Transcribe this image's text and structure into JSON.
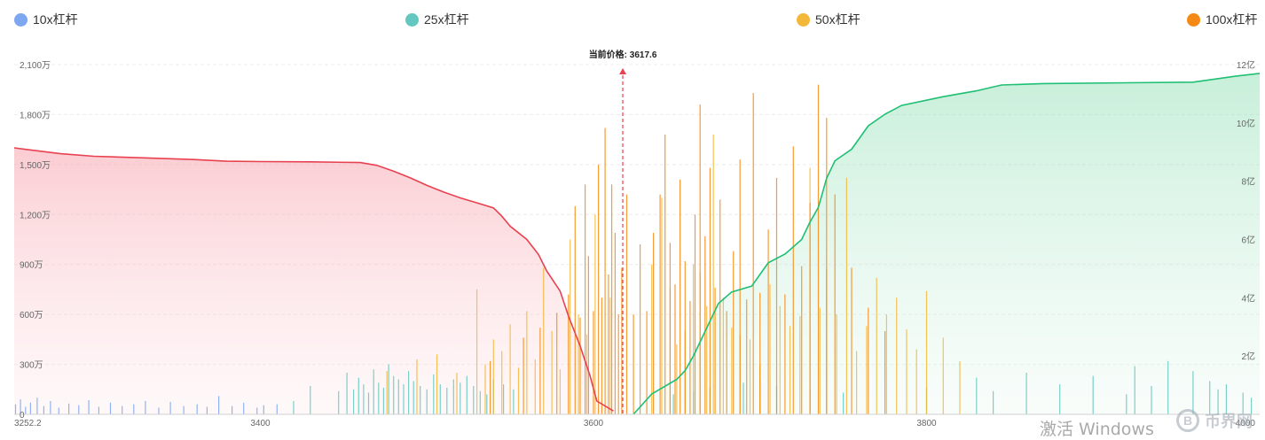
{
  "legend": {
    "items": [
      {
        "label": "10x杠杆",
        "color": "#7ea7f2"
      },
      {
        "label": "25x杠杆",
        "color": "#64c8c0"
      },
      {
        "label": "50x杠杆",
        "color": "#f3b73a"
      },
      {
        "label": "100x杠杆",
        "color": "#f48a14"
      }
    ]
  },
  "watermark": {
    "logo_glyph": "B",
    "text": "币界网"
  },
  "os_watermark": "激活 Windows",
  "chart_data": {
    "type": "bar",
    "title": "",
    "current_price": {
      "label": "当前价格: 3617.6",
      "value": 3617.6
    },
    "x_axis": {
      "range": [
        3252.2,
        4000
      ],
      "ticks": [
        "3252.2",
        "3400",
        "3600",
        "3800",
        "4000"
      ],
      "tick_values": [
        3252.2,
        3400,
        3600,
        3800,
        4000
      ]
    },
    "y_axis_left": {
      "range": [
        0,
        2100
      ],
      "unit": "万",
      "ticks": [
        "0",
        "300万",
        "600万",
        "900万",
        "1,200万",
        "1,500万",
        "1,800万",
        "2,100万"
      ],
      "tick_values": [
        0,
        300,
        600,
        900,
        1200,
        1500,
        1800,
        2100
      ]
    },
    "y_axis_right": {
      "range": [
        0,
        12
      ],
      "unit": "亿",
      "ticks": [
        "",
        "2亿",
        "4亿",
        "6亿",
        "8亿",
        "10亿",
        "12亿"
      ],
      "tick_values": [
        0,
        2,
        4,
        6,
        8,
        10,
        12
      ]
    },
    "grid": "horizontal dashed",
    "legend_position": "top",
    "cumulative_long": {
      "color": "#e8414f",
      "points": [
        [
          3252.2,
          1600
        ],
        [
          3260,
          1590
        ],
        [
          3280,
          1565
        ],
        [
          3300,
          1550
        ],
        [
          3330,
          1540
        ],
        [
          3360,
          1530
        ],
        [
          3380,
          1520
        ],
        [
          3400,
          1518
        ],
        [
          3430,
          1516
        ],
        [
          3460,
          1512
        ],
        [
          3470,
          1495
        ],
        [
          3480,
          1460
        ],
        [
          3490,
          1420
        ],
        [
          3500,
          1375
        ],
        [
          3510,
          1335
        ],
        [
          3520,
          1300
        ],
        [
          3530,
          1270
        ],
        [
          3540,
          1240
        ],
        [
          3545,
          1190
        ],
        [
          3550,
          1130
        ],
        [
          3560,
          1050
        ],
        [
          3567,
          960
        ],
        [
          3572,
          860
        ],
        [
          3580,
          740
        ],
        [
          3585,
          590
        ],
        [
          3592,
          410
        ],
        [
          3598,
          230
        ],
        [
          3602,
          80
        ],
        [
          3612,
          20
        ]
      ]
    },
    "cumulative_short": {
      "color": "#1fbf74",
      "points": [
        [
          3624,
          0
        ],
        [
          3635,
          0.7
        ],
        [
          3650,
          1.2
        ],
        [
          3655,
          1.5
        ],
        [
          3660,
          2.0
        ],
        [
          3665,
          2.6
        ],
        [
          3675,
          3.8
        ],
        [
          3683,
          4.2
        ],
        [
          3695,
          4.4
        ],
        [
          3700,
          4.8
        ],
        [
          3705,
          5.2
        ],
        [
          3715,
          5.5
        ],
        [
          3725,
          6.0
        ],
        [
          3730,
          6.6
        ],
        [
          3735,
          7.1
        ],
        [
          3740,
          8.1
        ],
        [
          3745,
          8.7
        ],
        [
          3755,
          9.1
        ],
        [
          3765,
          9.9
        ],
        [
          3775,
          10.3
        ],
        [
          3785,
          10.6
        ],
        [
          3810,
          10.9
        ],
        [
          3830,
          11.1
        ],
        [
          3845,
          11.3
        ],
        [
          3870,
          11.35
        ],
        [
          3960,
          11.4
        ],
        [
          3985,
          11.6
        ],
        [
          4000,
          11.7
        ]
      ]
    },
    "bars": [
      {
        "series": "10x杠杆",
        "x": [
          3253,
          3256,
          3259,
          3262,
          3266,
          3270,
          3274,
          3279,
          3285,
          3291,
          3297,
          3303,
          3310,
          3317,
          3324,
          3331,
          3339,
          3346,
          3354,
          3362,
          3368,
          3375,
          3383,
          3390,
          3398,
          3402,
          3410
        ],
        "values": [
          60,
          90,
          45,
          70,
          100,
          50,
          80,
          40,
          65,
          55,
          85,
          45,
          70,
          50,
          60,
          80,
          40,
          75,
          50,
          60,
          45,
          110,
          50,
          70,
          40,
          55,
          60
        ]
      },
      {
        "series": "25x杠杆",
        "x": [
          3420,
          3430,
          3447,
          3452,
          3456,
          3459,
          3462,
          3465,
          3468,
          3471,
          3474,
          3477,
          3480,
          3483,
          3486,
          3489,
          3492,
          3496,
          3500,
          3504,
          3508,
          3512,
          3516,
          3520,
          3524,
          3528,
          3532,
          3536,
          3540,
          3546,
          3552,
          3648,
          3660,
          3670,
          3690,
          3700,
          3710,
          3730,
          3750,
          3800,
          3830,
          3840,
          3860,
          3880,
          3900,
          3920,
          3925,
          3935,
          3945,
          3960,
          3970,
          3975,
          3980,
          3990,
          3995
        ],
        "values": [
          80,
          170,
          140,
          250,
          150,
          220,
          180,
          130,
          270,
          190,
          160,
          300,
          230,
          210,
          180,
          260,
          200,
          170,
          150,
          240,
          180,
          160,
          210,
          190,
          230,
          170,
          140,
          120,
          210,
          180,
          150,
          120,
          140,
          160,
          190,
          210,
          170,
          150,
          130,
          160,
          220,
          140,
          250,
          180,
          230,
          120,
          290,
          170,
          320,
          260,
          200,
          150,
          180,
          130,
          100
        ]
      },
      {
        "series": "50x杠杆",
        "x": [
          3476,
          3494,
          3506,
          3518,
          3530,
          3535,
          3540,
          3545,
          3550,
          3555,
          3560,
          3565,
          3570,
          3575,
          3580,
          3586,
          3591,
          3596,
          3601,
          3610,
          3635,
          3641,
          3646,
          3650,
          3655,
          3660,
          3664,
          3668,
          3672,
          3678,
          3683,
          3688,
          3694,
          3700,
          3706,
          3712,
          3718,
          3724,
          3730,
          3736,
          3740,
          3746,
          3752,
          3758,
          3764,
          3770,
          3776,
          3782,
          3788,
          3794,
          3800,
          3810,
          3820
        ],
        "values": [
          260,
          330,
          360,
          250,
          750,
          300,
          450,
          380,
          540,
          280,
          620,
          330,
          880,
          500,
          270,
          1050,
          600,
          480,
          1200,
          700,
          900,
          1300,
          760,
          420,
          500,
          900,
          850,
          650,
          1680,
          700,
          520,
          480,
          450,
          300,
          780,
          650,
          530,
          590,
          1480,
          640,
          870,
          600,
          1420,
          380,
          530,
          820,
          600,
          700,
          510,
          390,
          740,
          460,
          320
        ]
      },
      {
        "series": "100x杠杆",
        "x": [
          3538,
          3558,
          3568,
          3578,
          3585,
          3589,
          3592,
          3595,
          3597,
          3600,
          3603,
          3605,
          3607,
          3609,
          3611,
          3613,
          3615,
          3617,
          3620,
          3624,
          3628,
          3632,
          3636,
          3640,
          3643,
          3646,
          3649,
          3652,
          3655,
          3658,
          3661,
          3664,
          3667,
          3670,
          3673,
          3676,
          3680,
          3684,
          3688,
          3692,
          3696,
          3700,
          3705,
          3710,
          3715,
          3720,
          3725,
          3730,
          3735,
          3740,
          3745,
          3755,
          3765,
          3775
        ],
        "values": [
          320,
          460,
          520,
          610,
          720,
          1250,
          580,
          1380,
          950,
          620,
          1500,
          700,
          1720,
          840,
          1380,
          1090,
          600,
          880,
          1320,
          600,
          1020,
          620,
          1090,
          1320,
          1680,
          1030,
          780,
          1410,
          920,
          680,
          1200,
          1860,
          1070,
          1480,
          760,
          1290,
          620,
          980,
          1530,
          690,
          1930,
          730,
          1110,
          1420,
          720,
          1610,
          890,
          1270,
          1980,
          1780,
          1320,
          880,
          640,
          500
        ]
      }
    ]
  }
}
